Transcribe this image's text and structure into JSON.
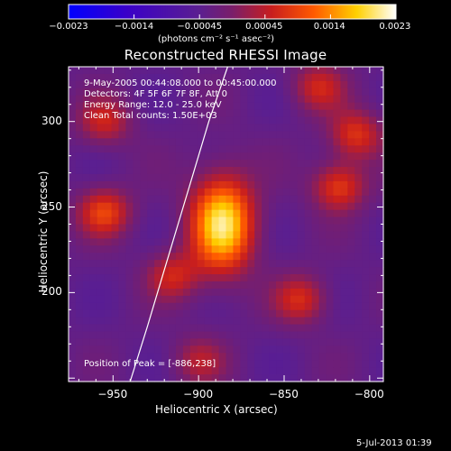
{
  "colorbar": {
    "tick_labels": [
      "-0.0023",
      "-0.0014",
      "-0.00045",
      "0.00045",
      "0.0014",
      "0.0023"
    ],
    "units": "(photons cm⁻² s⁻¹ asec⁻²)"
  },
  "chart_data": {
    "type": "heatmap",
    "title": "Reconstructed RHESSI Image",
    "xlabel": "Heliocentric X (arcsec)",
    "ylabel": "Heliocentric Y (arcsec)",
    "x_ticks": [
      -950,
      -900,
      -850,
      -800
    ],
    "y_ticks": [
      200,
      250,
      300
    ],
    "xlim": [
      -976,
      -792
    ],
    "ylim": [
      148,
      332
    ],
    "color_range": [
      -0.0023,
      0.0023
    ],
    "colormap": "purple-red-yellow-white",
    "peak": {
      "x": -886,
      "y": 238
    },
    "annotations": [
      "9-May-2005 00:44:08.000 to 00:45:00.000",
      "Detectors: 4F 5F 6F 7F 8F, Att 0",
      "Energy Range: 12.0 - 25.0 keV",
      "Clean     Total counts: 1.50E+03"
    ],
    "peak_label": "Position of Peak = [-886,238]",
    "sources": [
      {
        "x": -886,
        "y": 240,
        "level": 0.0023
      },
      {
        "x": -955,
        "y": 247,
        "level": 0.0012
      },
      {
        "x": -818,
        "y": 262,
        "level": 0.0012
      },
      {
        "x": -808,
        "y": 292,
        "level": 0.0011
      },
      {
        "x": -840,
        "y": 196,
        "level": 0.001
      },
      {
        "x": -915,
        "y": 210,
        "level": 0.0009
      },
      {
        "x": -830,
        "y": 320,
        "level": 0.0009
      },
      {
        "x": -955,
        "y": 300,
        "level": 0.0009
      },
      {
        "x": -900,
        "y": 160,
        "level": 0.0007
      }
    ],
    "limb_curve": [
      [
        -940,
        148
      ],
      [
        -930,
        180
      ],
      [
        -921,
        210
      ],
      [
        -912,
        240
      ],
      [
        -903,
        270
      ],
      [
        -894,
        300
      ],
      [
        -883,
        332
      ]
    ]
  },
  "footer": "5-Jul-2013 01:39"
}
